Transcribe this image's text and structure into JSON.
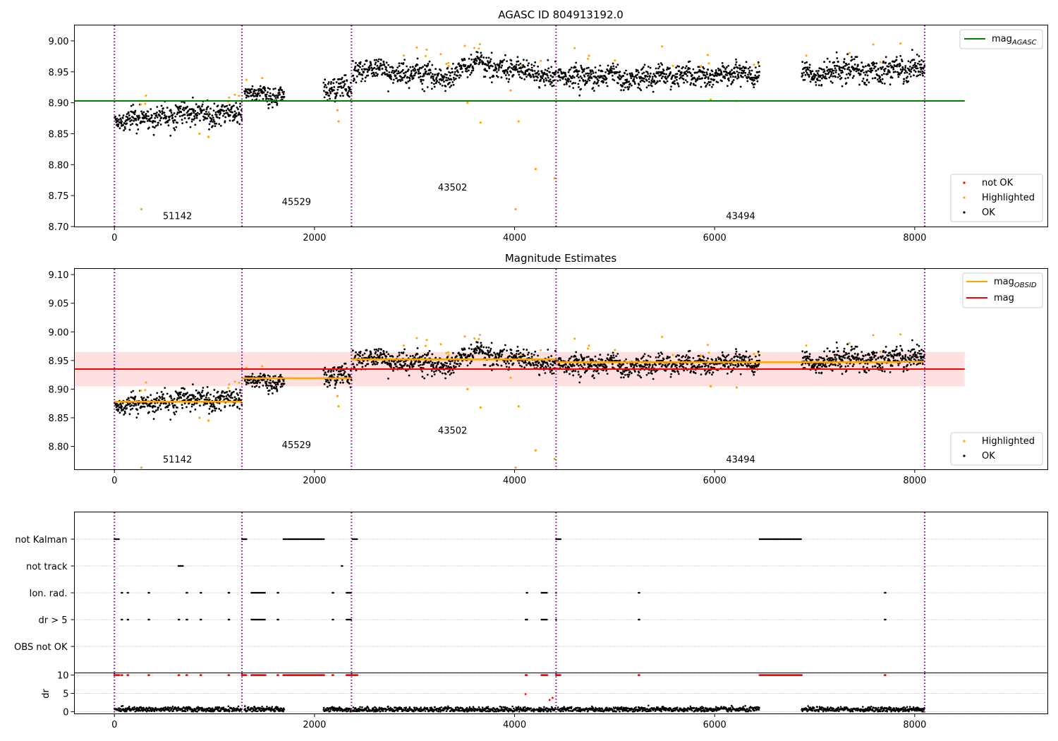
{
  "colors": {
    "ok": "#000000",
    "highlighted": "#ffa500",
    "not_ok": "#ff0000",
    "mag_agasc": "#008000",
    "mag_obsid": "#ffa500",
    "mag": "#ff0000",
    "obsid_boundary": "#800080",
    "band": "#ffcccc"
  },
  "chart_data": [
    {
      "type": "scatter",
      "title": "AGASC ID 804913192.0",
      "xlim": [
        -400,
        9330
      ],
      "ylim": [
        8.7,
        9.025
      ],
      "xticks": [
        0,
        2000,
        4000,
        6000,
        8000
      ],
      "yticks": [
        8.7,
        8.75,
        8.8,
        8.85,
        8.9,
        8.95,
        9.0
      ],
      "obsid_boundaries": [
        0,
        1275,
        2370,
        4415,
        8100
      ],
      "obsids": [
        {
          "label": "51142",
          "x": 630,
          "y": 8.712
        },
        {
          "label": "45529",
          "x": 1820,
          "y": 8.735
        },
        {
          "label": "43502",
          "x": 3380,
          "y": 8.758
        },
        {
          "label": "43494",
          "x": 6260,
          "y": 8.712
        }
      ],
      "segments": [
        {
          "x0": 0,
          "x1": 1275,
          "level": 8.878,
          "spread": 0.009
        },
        {
          "x0": 1300,
          "x1": 1700,
          "level": 8.918,
          "spread": 0.008
        },
        {
          "x0": 2090,
          "x1": 2370,
          "level": 8.921,
          "spread": 0.009
        },
        {
          "x0": 2380,
          "x1": 4415,
          "level": 8.952,
          "spread": 0.009
        },
        {
          "x0": 4430,
          "x1": 6450,
          "level": 8.942,
          "spread": 0.008
        },
        {
          "x0": 6870,
          "x1": 8100,
          "level": 8.952,
          "spread": 0.009
        }
      ],
      "highlighted_points": [
        [
          270,
          8.728
        ],
        [
          2240,
          8.87
        ],
        [
          2230,
          8.888
        ],
        [
          3530,
          8.9
        ],
        [
          3660,
          8.868
        ],
        [
          4040,
          8.87
        ],
        [
          4210,
          8.793
        ],
        [
          4010,
          8.728
        ],
        [
          4400,
          8.778
        ],
        [
          3960,
          8.92
        ],
        [
          5960,
          8.905
        ],
        [
          6220,
          8.903
        ],
        [
          940,
          8.845
        ],
        [
          850,
          8.85
        ]
      ],
      "series": [
        {
          "name": "mag_AGASC",
          "type": "hline",
          "y": 8.903,
          "x0": -400,
          "x1": 8500
        }
      ],
      "legend": {
        "lines": [
          "mag",
          "AGASC"
        ],
        "points": [
          "not OK",
          "Highlighted",
          "OK"
        ]
      }
    },
    {
      "type": "scatter",
      "title": "Magnitude Estimates",
      "xlim": [
        -400,
        9330
      ],
      "ylim": [
        8.76,
        9.11
      ],
      "xticks": [
        0,
        2000,
        4000,
        6000,
        8000
      ],
      "yticks": [
        8.8,
        8.85,
        8.9,
        8.95,
        9.0,
        9.05,
        9.1
      ],
      "obsids": [
        {
          "label": "51142",
          "x": 630,
          "y": 8.772
        },
        {
          "label": "45529",
          "x": 1820,
          "y": 8.797
        },
        {
          "label": "43502",
          "x": 3380,
          "y": 8.822
        },
        {
          "label": "43494",
          "x": 6260,
          "y": 8.772
        }
      ],
      "mag": 8.935,
      "mag_band": [
        8.905,
        8.965
      ],
      "mag_obsid": [
        {
          "x0": 0,
          "x1": 1275,
          "y": 8.878
        },
        {
          "x0": 1275,
          "x1": 2370,
          "y": 8.919
        },
        {
          "x0": 2370,
          "x1": 4415,
          "y": 8.952
        },
        {
          "x0": 4415,
          "x1": 7850,
          "y": 8.947
        },
        {
          "x0": 7850,
          "x1": 8100,
          "y": 8.948
        }
      ],
      "legend": {
        "lines": [
          "mag",
          "OBSID",
          "mag"
        ],
        "points": [
          "Highlighted",
          "OK"
        ]
      }
    },
    {
      "type": "scatter",
      "categories": [
        "not Kalman",
        "not track",
        "Ion. rad.",
        "dr > 5",
        "OBS not OK"
      ],
      "flag_ranges": {
        "not Kalman": [
          [
            0,
            50
          ],
          [
            1275,
            1320
          ],
          [
            1690,
            2100
          ],
          [
            2380,
            2430
          ],
          [
            4415,
            4460
          ],
          [
            6450,
            6870
          ]
        ],
        "not track": [
          [
            640,
            690
          ],
          [
            2270,
            2280
          ]
        ],
        "Ion. rad.": [
          [
            70,
            80
          ],
          [
            130,
            140
          ],
          [
            340,
            350
          ],
          [
            720,
            730
          ],
          [
            860,
            870
          ],
          [
            1140,
            1150
          ],
          [
            1370,
            1510
          ],
          [
            1630,
            1640
          ],
          [
            2180,
            2190
          ],
          [
            2320,
            2370
          ],
          [
            4120,
            4130
          ],
          [
            4270,
            4330
          ],
          [
            4415,
            4420
          ],
          [
            5240,
            5250
          ],
          [
            7700,
            7710
          ]
        ],
        "dr > 5": [
          [
            70,
            80
          ],
          [
            130,
            140
          ],
          [
            340,
            350
          ],
          [
            640,
            650
          ],
          [
            720,
            730
          ],
          [
            860,
            870
          ],
          [
            1140,
            1150
          ],
          [
            1370,
            1510
          ],
          [
            1630,
            1640
          ],
          [
            2180,
            2190
          ],
          [
            2320,
            2370
          ],
          [
            4110,
            4130
          ],
          [
            4270,
            4330
          ],
          [
            4415,
            4420
          ],
          [
            5240,
            5250
          ],
          [
            7700,
            7710
          ]
        ],
        "OBS not OK": []
      }
    },
    {
      "type": "scatter",
      "xlim": [
        -400,
        9330
      ],
      "xticks": [
        0,
        2000,
        4000,
        6000,
        8000
      ],
      "ylim": [
        -0.5,
        10.5
      ],
      "yticks": [
        0,
        5,
        10
      ],
      "ylabel": "dr"
    }
  ]
}
